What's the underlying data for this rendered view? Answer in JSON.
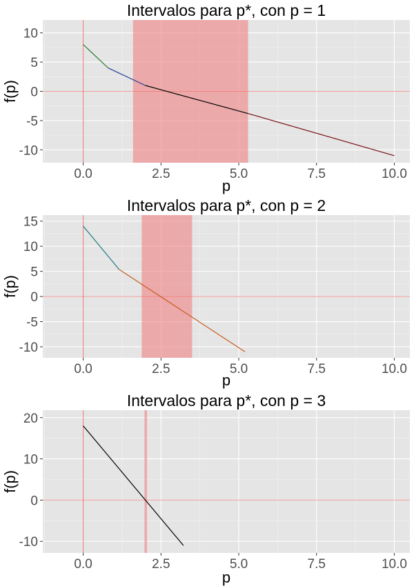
{
  "colors": {
    "interval_fill": "#f08080",
    "reference_line": "#f07070",
    "panel_background": "#e5e5e5",
    "grid": "#ffffff"
  },
  "chart_data": [
    {
      "type": "line",
      "title": "Intervalos para p*, con p = 1",
      "xlabel": "p",
      "ylabel": "f(p)",
      "xlim": [
        -1.3,
        10.5
      ],
      "ylim": [
        -12.2,
        12.2
      ],
      "x_ticks": [
        0,
        2.5,
        5,
        7.5,
        10
      ],
      "x_tick_labels": [
        "0.0",
        "2.5",
        "5.0",
        "7.5",
        "10.0"
      ],
      "y_ticks": [
        -10,
        -5,
        0,
        5,
        10
      ],
      "y_tick_labels": [
        "-10",
        "-5",
        "0",
        "5",
        "10"
      ],
      "grid": true,
      "interval": [
        1.6,
        5.3
      ],
      "reference_lines": {
        "x": 0,
        "y": 0
      },
      "series": [
        {
          "color": "#2e7d32",
          "x": [
            0,
            0.8
          ],
          "y": [
            8,
            4.0
          ]
        },
        {
          "color": "#1f3d99",
          "x": [
            0.8,
            2.0
          ],
          "y": [
            4.0,
            1.0
          ]
        },
        {
          "color": "#000000",
          "x": [
            2.0,
            5.3
          ],
          "y": [
            1.0,
            -3.8
          ]
        },
        {
          "color": "#7a1010",
          "x": [
            5.3,
            10.0
          ],
          "y": [
            -3.8,
            -11.0
          ]
        }
      ]
    },
    {
      "type": "line",
      "title": "Intervalos para p*, con p = 2",
      "xlabel": "p",
      "ylabel": "f(p)",
      "xlim": [
        -1.3,
        10.5
      ],
      "ylim": [
        -12.2,
        16.2
      ],
      "x_ticks": [
        0,
        2.5,
        5,
        7.5,
        10
      ],
      "x_tick_labels": [
        "0.0",
        "2.5",
        "5.0",
        "7.5",
        "10.0"
      ],
      "y_ticks": [
        -10,
        -5,
        0,
        5,
        10,
        15
      ],
      "y_tick_labels": [
        "-10",
        "-5",
        "0",
        "5",
        "10",
        "15"
      ],
      "grid": true,
      "interval": [
        1.88,
        3.5
      ],
      "reference_lines": {
        "x": 0,
        "y": 0
      },
      "series": [
        {
          "color": "#1a7a80",
          "x": [
            0,
            1.15
          ],
          "y": [
            14,
            5.4
          ]
        },
        {
          "color": "#c85a1e",
          "x": [
            1.15,
            5.2
          ],
          "y": [
            5.4,
            -11.0
          ]
        }
      ]
    },
    {
      "type": "line",
      "title": "Intervalos para p*, con p = 3",
      "xlabel": "p",
      "ylabel": "f(p)",
      "xlim": [
        -1.3,
        10.5
      ],
      "ylim": [
        -12.8,
        21.8
      ],
      "x_ticks": [
        0,
        2.5,
        5,
        7.5,
        10
      ],
      "x_tick_labels": [
        "0.0",
        "2.5",
        "5.0",
        "7.5",
        "10.0"
      ],
      "y_ticks": [
        -10,
        0,
        10,
        20
      ],
      "y_tick_labels": [
        "-10",
        "0",
        "10",
        "20"
      ],
      "grid": true,
      "interval": [
        1.97,
        2.05
      ],
      "reference_lines": {
        "x": 0,
        "y": 0
      },
      "series": [
        {
          "color": "#000000",
          "x": [
            0,
            3.22
          ],
          "y": [
            18,
            -11.0
          ]
        }
      ]
    }
  ]
}
